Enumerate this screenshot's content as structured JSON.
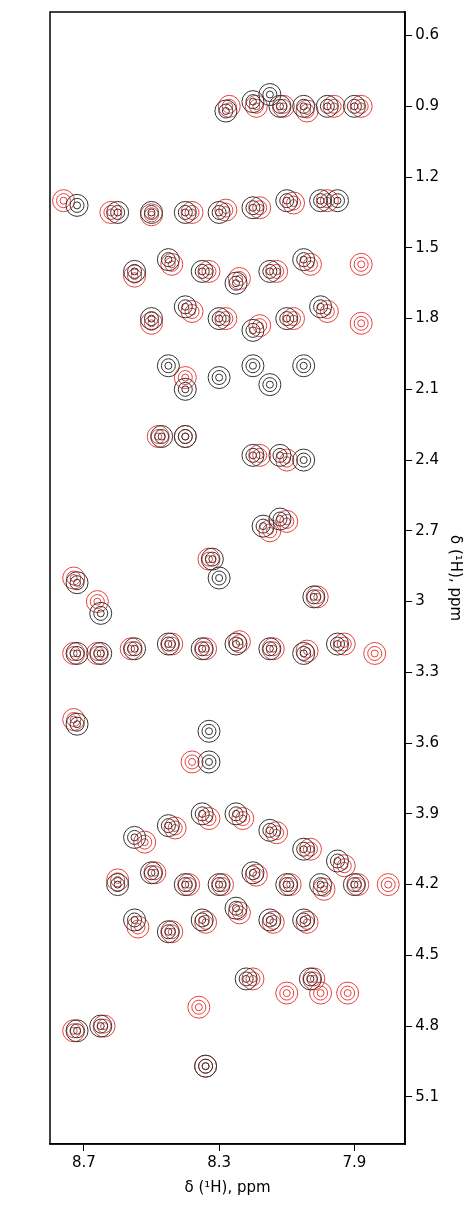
{
  "chart_data": {
    "type": "scatter",
    "xlabel": "δ (¹H), ppm",
    "ylabel": "δ (¹H), ppm",
    "xlim": [
      8.8,
      7.75
    ],
    "ylim": [
      5.3,
      0.5
    ],
    "xticks": [
      8.7,
      8.3,
      7.9
    ],
    "yticks": [
      0.6,
      0.9,
      1.2,
      1.5,
      1.8,
      2.1,
      2.4,
      2.7,
      3.0,
      3.3,
      3.6,
      3.9,
      4.2,
      4.5,
      4.8,
      5.1
    ],
    "grid": false,
    "marker": "contour",
    "series": [
      {
        "color": "#333333",
        "x": [
          8.28,
          8.2,
          8.12,
          8.05,
          7.98,
          7.9,
          8.15,
          8.72,
          8.6,
          8.5,
          8.4,
          8.3,
          8.2,
          8.1,
          8.0,
          7.95,
          8.55,
          8.45,
          8.35,
          8.25,
          8.15,
          8.05,
          8.5,
          8.4,
          8.3,
          8.2,
          8.1,
          8.0,
          8.45,
          8.3,
          8.2,
          8.15,
          8.05,
          8.4,
          8.4,
          8.47,
          8.2,
          8.12,
          8.05,
          8.17,
          8.12,
          8.32,
          8.3,
          8.02,
          8.72,
          8.65,
          8.65,
          8.72,
          8.55,
          8.45,
          8.35,
          8.25,
          8.15,
          8.05,
          7.95,
          8.72,
          8.33,
          8.33,
          8.55,
          8.45,
          8.35,
          8.25,
          8.15,
          8.05,
          7.95,
          8.6,
          8.5,
          8.4,
          8.3,
          8.2,
          8.1,
          8.0,
          7.9,
          8.55,
          8.45,
          8.35,
          8.25,
          8.15,
          8.05,
          8.22,
          8.03,
          8.72,
          8.65,
          8.34
        ],
        "y": [
          0.92,
          0.88,
          0.9,
          0.9,
          0.9,
          0.9,
          0.85,
          1.32,
          1.35,
          1.35,
          1.35,
          1.35,
          1.33,
          1.3,
          1.3,
          1.3,
          1.6,
          1.55,
          1.6,
          1.65,
          1.6,
          1.55,
          1.8,
          1.75,
          1.8,
          1.85,
          1.8,
          1.75,
          2.0,
          2.05,
          2.0,
          2.08,
          2.0,
          2.1,
          2.3,
          2.3,
          2.38,
          2.38,
          2.4,
          2.68,
          2.65,
          2.82,
          2.9,
          2.98,
          2.92,
          3.05,
          3.22,
          3.22,
          3.2,
          3.18,
          3.2,
          3.18,
          3.2,
          3.22,
          3.18,
          3.52,
          3.55,
          3.68,
          4.0,
          3.95,
          3.9,
          3.9,
          3.97,
          4.05,
          4.1,
          4.2,
          4.15,
          4.2,
          4.2,
          4.15,
          4.2,
          4.2,
          4.2,
          4.35,
          4.4,
          4.35,
          4.3,
          4.35,
          4.35,
          4.6,
          4.6,
          4.82,
          4.8,
          4.97
        ]
      },
      {
        "color": "#e8413c",
        "x": [
          8.27,
          8.19,
          8.11,
          8.04,
          7.96,
          7.88,
          8.76,
          8.62,
          8.5,
          8.38,
          8.28,
          8.18,
          8.08,
          7.98,
          8.55,
          8.44,
          8.33,
          8.24,
          8.13,
          8.03,
          7.88,
          8.5,
          8.38,
          8.28,
          8.18,
          8.08,
          7.98,
          7.88,
          8.4,
          8.48,
          8.4,
          8.18,
          8.1,
          8.15,
          8.1,
          8.33,
          8.01,
          8.73,
          8.66,
          8.66,
          8.73,
          8.56,
          8.44,
          8.34,
          8.24,
          8.14,
          8.04,
          7.93,
          7.84,
          8.73,
          8.38,
          8.52,
          8.43,
          8.33,
          8.23,
          8.13,
          8.03,
          7.93,
          8.6,
          8.49,
          8.39,
          8.29,
          8.19,
          8.09,
          7.99,
          7.89,
          7.8,
          8.54,
          8.44,
          8.34,
          8.24,
          8.14,
          8.04,
          8.2,
          8.1,
          8.0,
          7.92,
          8.02,
          8.36,
          8.73,
          8.64,
          8.34
        ],
        "y": [
          0.9,
          0.9,
          0.9,
          0.92,
          0.9,
          0.9,
          1.3,
          1.35,
          1.36,
          1.35,
          1.34,
          1.33,
          1.31,
          1.3,
          1.62,
          1.57,
          1.6,
          1.63,
          1.6,
          1.57,
          1.57,
          1.82,
          1.77,
          1.8,
          1.83,
          1.8,
          1.77,
          1.82,
          2.05,
          2.3,
          2.3,
          2.38,
          2.4,
          2.7,
          2.66,
          2.82,
          2.98,
          2.9,
          3.0,
          3.22,
          3.22,
          3.2,
          3.18,
          3.2,
          3.17,
          3.2,
          3.21,
          3.18,
          3.22,
          3.5,
          3.68,
          4.02,
          3.96,
          3.92,
          3.92,
          3.98,
          4.05,
          4.12,
          4.18,
          4.15,
          4.2,
          4.2,
          4.16,
          4.2,
          4.22,
          4.2,
          4.2,
          4.38,
          4.4,
          4.36,
          4.32,
          4.36,
          4.36,
          4.6,
          4.66,
          4.66,
          4.66,
          4.6,
          4.72,
          4.82,
          4.8,
          4.97
        ]
      }
    ]
  }
}
